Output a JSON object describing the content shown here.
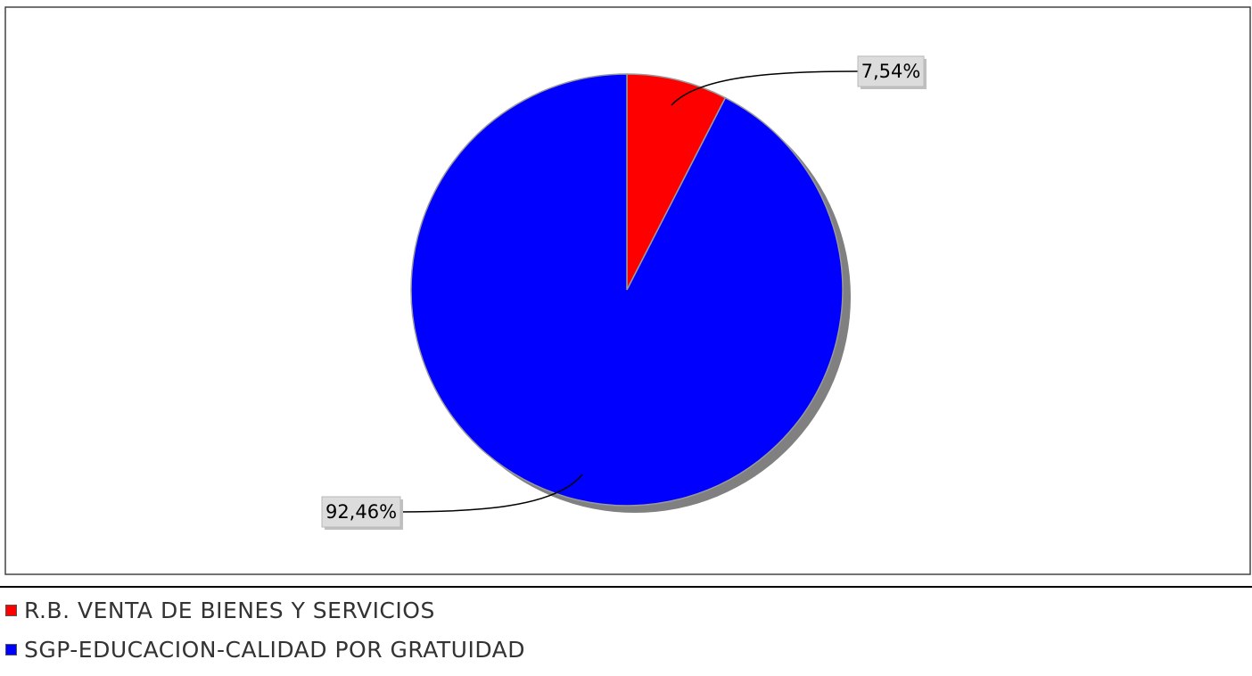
{
  "chart_data": {
    "type": "pie",
    "slices": [
      {
        "label": "R.B. VENTA DE BIENES Y SERVICIOS",
        "value": 7.54,
        "value_label": "7,54%",
        "color": "#ff0000"
      },
      {
        "label": "SGP-EDUCACION-CALIDAD  POR GRATUIDAD",
        "value": 92.46,
        "value_label": "92,46%",
        "color": "#0000ff"
      }
    ],
    "start_angle": "12 o'clock",
    "direction": "clockwise",
    "legend_position": "bottom-left",
    "shadow": true
  }
}
